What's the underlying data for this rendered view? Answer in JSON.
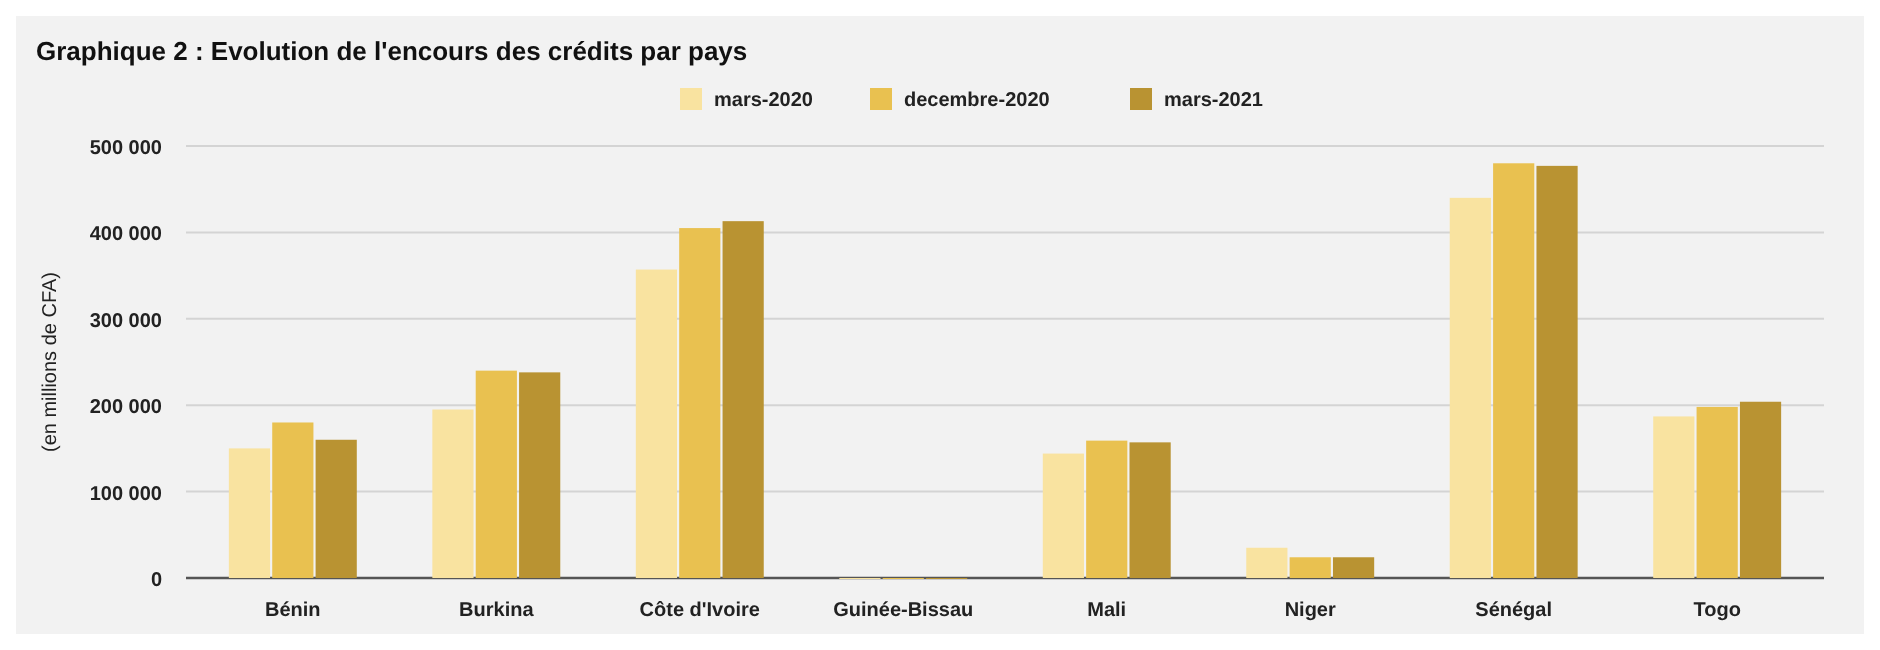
{
  "chart_data": {
    "type": "bar",
    "title": "Graphique 2 : Evolution de l'encours des crédits par pays",
    "ylabel": "(en millions de CFA)",
    "categories": [
      "Bénin",
      "Burkina",
      "Côte d'Ivoire",
      "Guinée-Bissau",
      "Mali",
      "Niger",
      "Sénégal",
      "Togo"
    ],
    "series": [
      {
        "name": "mars-2020",
        "color": "#f9e3a0",
        "values": [
          150000,
          195000,
          357000,
          0,
          144000,
          35000,
          440000,
          187000
        ]
      },
      {
        "name": "decembre-2020",
        "color": "#e9c150",
        "values": [
          180000,
          240000,
          405000,
          0,
          159000,
          24000,
          480000,
          198000
        ]
      },
      {
        "name": "mars-2021",
        "color": "#b99332",
        "values": [
          160000,
          238000,
          413000,
          0,
          157000,
          24000,
          477000,
          204000
        ]
      }
    ],
    "ylim": [
      0,
      500000
    ],
    "yticks": [
      {
        "value": 0,
        "label": "0"
      },
      {
        "value": 100000,
        "label": "100 000"
      },
      {
        "value": 200000,
        "label": "200 000"
      },
      {
        "value": 300000,
        "label": "300 000"
      },
      {
        "value": 400000,
        "label": "400 000"
      },
      {
        "value": 500000,
        "label": "500 000"
      }
    ],
    "grid": "y",
    "legend": "top"
  }
}
